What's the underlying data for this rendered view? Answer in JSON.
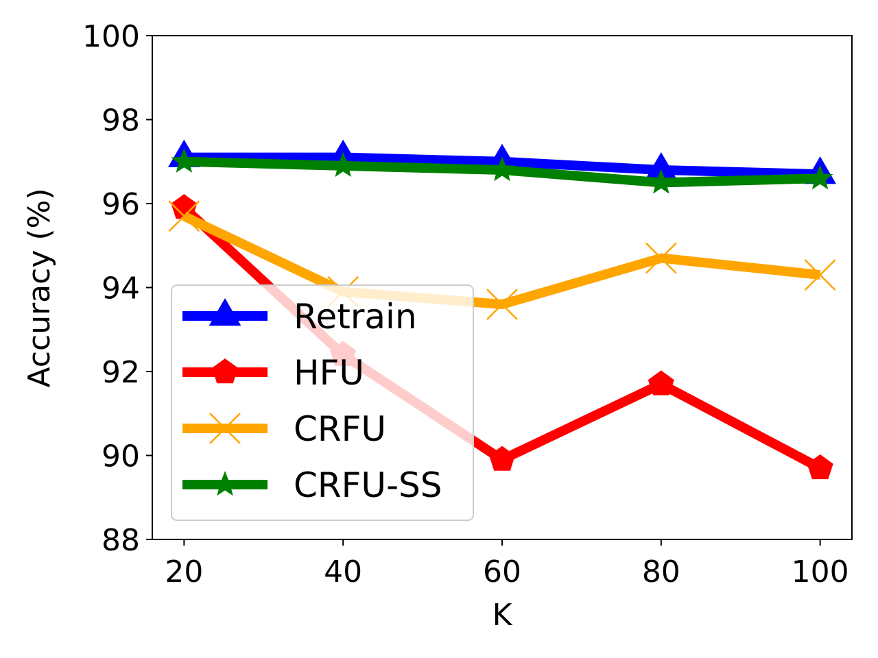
{
  "chart_data": {
    "type": "line",
    "title": "",
    "xlabel": "K",
    "ylabel": "Accuracy (%)",
    "x": [
      20,
      40,
      60,
      80,
      100
    ],
    "xticks": [
      "20",
      "40",
      "60",
      "80",
      "100"
    ],
    "yticks": [
      "88",
      "90",
      "92",
      "94",
      "96",
      "98",
      "100"
    ],
    "xlim": [
      16,
      104
    ],
    "ylim": [
      88,
      100
    ],
    "grid": false,
    "legend_position": "lower-left",
    "series": [
      {
        "name": "Retrain",
        "color": "#0000ff",
        "marker": "triangle",
        "values": [
          97.1,
          97.1,
          97.0,
          96.8,
          96.7
        ]
      },
      {
        "name": "HFU",
        "color": "#ff0000",
        "marker": "pentagon",
        "values": [
          95.9,
          92.4,
          89.9,
          91.7,
          89.7
        ]
      },
      {
        "name": "CRFU",
        "color": "#ffa500",
        "marker": "x",
        "values": [
          95.7,
          93.9,
          93.6,
          94.7,
          94.3
        ]
      },
      {
        "name": "CRFU-SS",
        "color": "#008000",
        "marker": "star",
        "values": [
          97.0,
          96.9,
          96.8,
          96.5,
          96.6
        ]
      }
    ]
  }
}
